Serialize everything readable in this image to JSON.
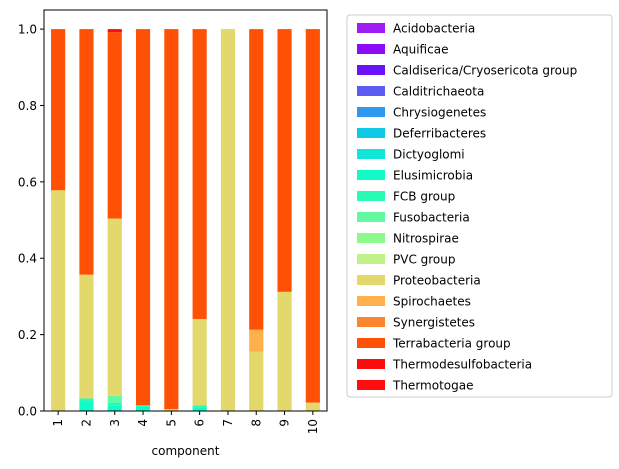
{
  "chart_data": {
    "type": "bar",
    "stacked": true,
    "xlabel": "component",
    "ylabel": "",
    "ylim": [
      0,
      1.05
    ],
    "yticks": [
      0.0,
      0.2,
      0.4,
      0.6,
      0.8,
      1.0
    ],
    "ytick_labels": [
      "0.0",
      "0.2",
      "0.4",
      "0.6",
      "0.8",
      "1.0"
    ],
    "categories": [
      "1",
      "2",
      "3",
      "4",
      "5",
      "6",
      "7",
      "8",
      "9",
      "10"
    ],
    "legend_position": "outside-right",
    "grid": false,
    "series": [
      {
        "name": "Acidobacteria",
        "color": "#9e1cf5",
        "values": [
          0,
          0,
          0,
          0,
          0,
          0,
          0,
          0,
          0,
          0
        ]
      },
      {
        "name": "Aquificae",
        "color": "#8c0cf8",
        "values": [
          0,
          0,
          0,
          0,
          0,
          0,
          0,
          0,
          0,
          0
        ]
      },
      {
        "name": "Caldiserica/Cryosericota group",
        "color": "#6a12f8",
        "values": [
          0,
          0,
          0,
          0,
          0,
          0,
          0,
          0,
          0,
          0
        ]
      },
      {
        "name": "Calditrichaeota",
        "color": "#5b5cf1",
        "values": [
          0,
          0,
          0,
          0,
          0,
          0,
          0,
          0,
          0,
          0
        ]
      },
      {
        "name": "Chrysiogenetes",
        "color": "#2e98ee",
        "values": [
          0,
          0,
          0,
          0,
          0,
          0,
          0,
          0,
          0,
          0
        ]
      },
      {
        "name": "Deferribacteres",
        "color": "#0ec8e6",
        "values": [
          0,
          0,
          0,
          0,
          0,
          0,
          0,
          0,
          0,
          0
        ]
      },
      {
        "name": "Dictyoglomi",
        "color": "#10e6da",
        "values": [
          0,
          0,
          0,
          0,
          0,
          0,
          0,
          0,
          0,
          0
        ]
      },
      {
        "name": "Elusimicrobia",
        "color": "#11fac8",
        "values": [
          0,
          0.025,
          0.015,
          0.012,
          0,
          0.008,
          0,
          0,
          0,
          0
        ]
      },
      {
        "name": "FCB group",
        "color": "#2afbb4",
        "values": [
          0,
          0.008,
          0.008,
          0.003,
          0,
          0.007,
          0,
          0,
          0,
          0
        ]
      },
      {
        "name": "Fusobacteria",
        "color": "#63f8a2",
        "values": [
          0,
          0,
          0.017,
          0,
          0,
          0,
          0,
          0,
          0,
          0
        ]
      },
      {
        "name": "Nitrospirae",
        "color": "#8efa8e",
        "values": [
          0,
          0,
          0,
          0,
          0,
          0,
          0,
          0,
          0,
          0
        ]
      },
      {
        "name": "PVC group",
        "color": "#c1f28a",
        "values": [
          0,
          0,
          0,
          0,
          0,
          0,
          0,
          0,
          0,
          0
        ]
      },
      {
        "name": "Proteobacteria",
        "color": "#e2d86c",
        "values": [
          0.578,
          0.324,
          0.464,
          0,
          0.005,
          0.226,
          1.0,
          0.155,
          0.312,
          0.022
        ]
      },
      {
        "name": "Spirochaetes",
        "color": "#feb04c",
        "values": [
          0,
          0,
          0,
          0,
          0,
          0,
          0,
          0.058,
          0,
          0
        ]
      },
      {
        "name": "Synergistetes",
        "color": "#fc8530",
        "values": [
          0,
          0,
          0,
          0,
          0,
          0,
          0,
          0,
          0,
          0
        ]
      },
      {
        "name": "Terrabacteria group",
        "color": "#ff5106",
        "values": [
          0.422,
          0.643,
          0.488,
          0.985,
          0.995,
          0.759,
          0,
          0.787,
          0.688,
          0.978
        ]
      },
      {
        "name": "Thermodesulfobacteria",
        "color": "#fa0c0c",
        "values": [
          0,
          0,
          0.008,
          0,
          0,
          0,
          0,
          0,
          0,
          0
        ]
      },
      {
        "name": "Thermotogae",
        "color": "#ff0d0d",
        "values": [
          0,
          0,
          0,
          0,
          0,
          0,
          0,
          0,
          0,
          0
        ]
      }
    ]
  }
}
